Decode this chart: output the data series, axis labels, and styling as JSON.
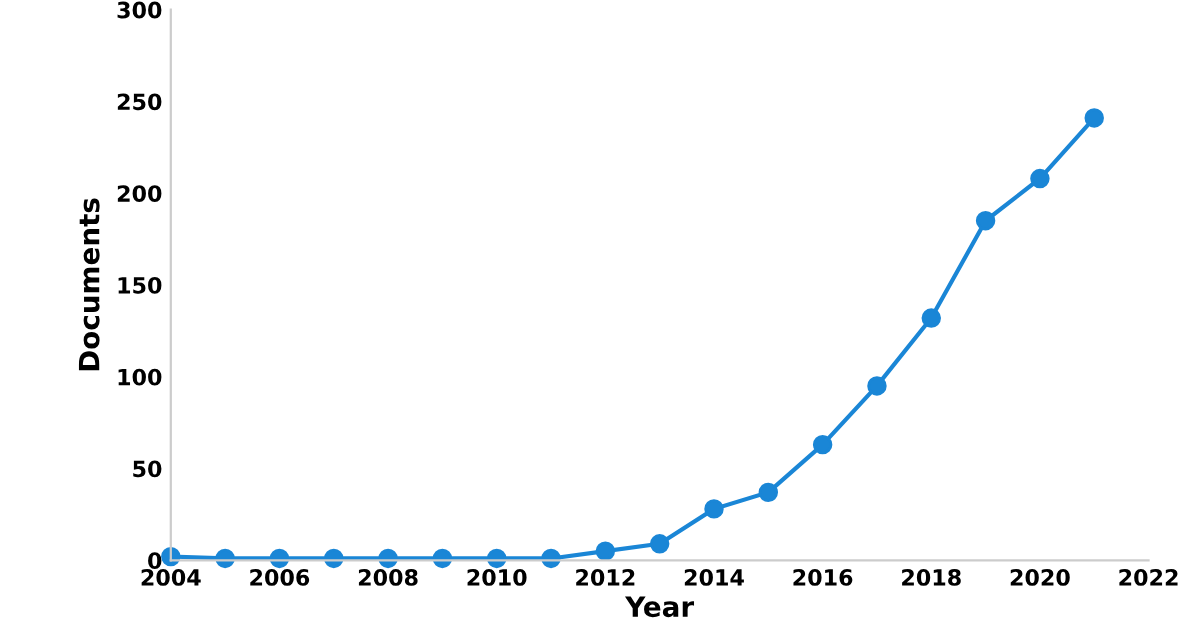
{
  "chart_data": {
    "type": "line",
    "xlabel": "Year",
    "ylabel": "Documents",
    "x": [
      2004,
      2005,
      2006,
      2007,
      2008,
      2009,
      2010,
      2011,
      2012,
      2013,
      2014,
      2015,
      2016,
      2017,
      2018,
      2019,
      2020,
      2021
    ],
    "series": [
      {
        "color": "#1a86d6",
        "values": [
          2,
          1,
          1,
          1,
          1,
          1,
          1,
          1,
          5,
          9,
          28,
          37,
          63,
          95,
          132,
          185,
          208,
          241
        ]
      }
    ],
    "xlim": [
      2004,
      2022
    ],
    "xticks": [
      2004,
      2006,
      2008,
      2010,
      2012,
      2014,
      2016,
      2018,
      2020,
      2022
    ],
    "ylim": [
      0,
      300
    ],
    "yticks": [
      0,
      50,
      100,
      150,
      200,
      250,
      300
    ],
    "grid": false,
    "marker": "circle",
    "line_style": "solid"
  }
}
